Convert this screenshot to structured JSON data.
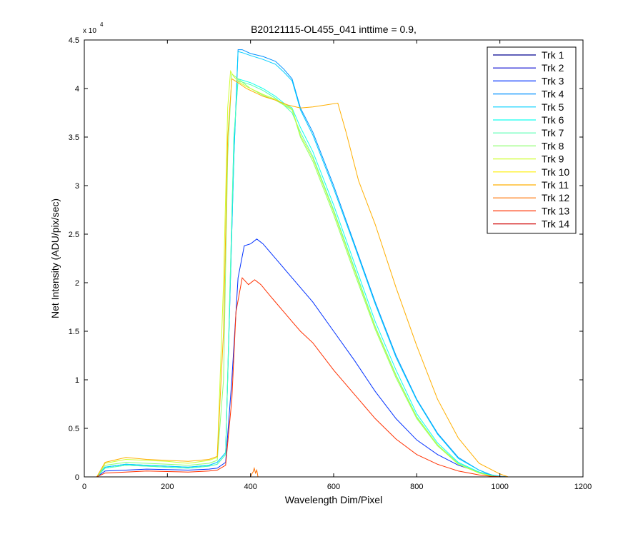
{
  "chart_data": {
    "type": "line",
    "title": "B20121115-OL455_041 inttime = 0.9,",
    "xlabel": "Wavelength Dim/Pixel",
    "ylabel": "Net Intensity (ADU/pix/sec)",
    "y_exponent_label": "x 10",
    "y_exponent_power": "4",
    "xlim": [
      0,
      1200
    ],
    "ylim": [
      0,
      45000
    ],
    "xticks": [
      0,
      200,
      400,
      600,
      800,
      1000,
      1200
    ],
    "xtick_labels": [
      "0",
      "200",
      "400",
      "600",
      "800",
      "1000",
      "1200"
    ],
    "yticks": [
      0,
      5000,
      10000,
      15000,
      20000,
      25000,
      30000,
      35000,
      40000,
      45000
    ],
    "ytick_labels": [
      "0",
      "0.5",
      "1",
      "1.5",
      "2",
      "2.5",
      "3",
      "3.5",
      "4",
      "4.5"
    ],
    "grid": false,
    "legend_position": "top-right",
    "series": [
      {
        "name": "Trk 1",
        "color": "#00008F",
        "x": [
          0,
          1200
        ],
        "y": [
          0,
          0
        ]
      },
      {
        "name": "Trk 2",
        "color": "#0000CF",
        "x": [
          0,
          1200
        ],
        "y": [
          0,
          0
        ]
      },
      {
        "name": "Trk 3",
        "color": "#0030FF",
        "x": [
          30,
          50,
          100,
          150,
          200,
          250,
          300,
          320,
          340,
          355,
          370,
          385,
          400,
          415,
          430,
          450,
          480,
          500,
          520,
          550,
          600,
          650,
          700,
          750,
          800,
          850,
          900,
          950,
          980,
          1000,
          1020
        ],
        "y": [
          0,
          600,
          700,
          800,
          750,
          700,
          800,
          900,
          1500,
          10000,
          20500,
          23800,
          24000,
          24500,
          24000,
          23000,
          21500,
          20500,
          19500,
          18000,
          15000,
          12000,
          8800,
          6000,
          3800,
          2300,
          1200,
          500,
          200,
          60,
          0
        ]
      },
      {
        "name": "Trk 4",
        "color": "#0090FF",
        "x": [
          30,
          50,
          100,
          150,
          200,
          250,
          300,
          320,
          340,
          360,
          370,
          380,
          400,
          430,
          460,
          480,
          500,
          520,
          550,
          600,
          650,
          700,
          750,
          800,
          850,
          900,
          950,
          980,
          1000,
          1020
        ],
        "y": [
          0,
          1000,
          1300,
          1200,
          1100,
          1000,
          1200,
          1500,
          2500,
          33000,
          44000,
          44000,
          43600,
          43300,
          42800,
          42000,
          41000,
          38000,
          35500,
          30000,
          24000,
          18000,
          12500,
          8000,
          4500,
          2000,
          700,
          200,
          50,
          0
        ]
      },
      {
        "name": "Trk 5",
        "color": "#00CFFF",
        "x": [
          30,
          50,
          100,
          150,
          200,
          250,
          300,
          320,
          340,
          360,
          370,
          380,
          400,
          430,
          460,
          480,
          500,
          520,
          550,
          600,
          650,
          700,
          750,
          800,
          850,
          900,
          950,
          980,
          1000,
          1020
        ],
        "y": [
          0,
          1000,
          1300,
          1200,
          1100,
          1000,
          1200,
          1500,
          2500,
          33000,
          43800,
          43700,
          43400,
          43000,
          42500,
          41700,
          40800,
          37800,
          35200,
          29700,
          23800,
          17800,
          12300,
          7900,
          4400,
          1900,
          700,
          200,
          50,
          0
        ]
      },
      {
        "name": "Trk 6",
        "color": "#10FFEF",
        "x": [
          30,
          50,
          100,
          150,
          200,
          250,
          300,
          320,
          340,
          360,
          370,
          385,
          400,
          430,
          460,
          480,
          500,
          520,
          550,
          600,
          650,
          700,
          750,
          800,
          850,
          900,
          950,
          980,
          1000
        ],
        "y": [
          0,
          900,
          1200,
          1100,
          1000,
          900,
          1100,
          1300,
          2300,
          35000,
          41000,
          40800,
          40600,
          40000,
          39200,
          38500,
          38000,
          36000,
          33500,
          28000,
          22000,
          16000,
          11000,
          6500,
          3500,
          1500,
          500,
          150,
          0
        ]
      },
      {
        "name": "Trk 7",
        "color": "#50FFAF",
        "x": [
          30,
          50,
          100,
          150,
          200,
          250,
          300,
          320,
          340,
          360,
          370,
          385,
          400,
          430,
          460,
          480,
          500,
          520,
          550,
          600,
          650,
          700,
          750,
          800,
          850,
          900,
          950,
          980,
          1000
        ],
        "y": [
          0,
          900,
          1200,
          1100,
          1000,
          900,
          1100,
          1300,
          2300,
          35000,
          40800,
          40600,
          40400,
          39800,
          39000,
          38300,
          37500,
          35500,
          33000,
          27500,
          21500,
          15500,
          10500,
          6200,
          3300,
          1400,
          450,
          120,
          0
        ]
      },
      {
        "name": "Trk 8",
        "color": "#8FFF70",
        "x": [
          30,
          50,
          100,
          150,
          200,
          250,
          300,
          320,
          335,
          345,
          355,
          370,
          385,
          400,
          430,
          460,
          480,
          500,
          520,
          550,
          600,
          650,
          700,
          750,
          800,
          850,
          900,
          950,
          980,
          1000
        ],
        "y": [
          0,
          1200,
          1500,
          1400,
          1300,
          1200,
          1400,
          1700,
          10000,
          33000,
          41500,
          41000,
          40500,
          40000,
          39300,
          38800,
          38300,
          37800,
          35000,
          32500,
          27000,
          21000,
          15200,
          10200,
          6000,
          3200,
          1300,
          400,
          100,
          0
        ]
      },
      {
        "name": "Trk 9",
        "color": "#CFFF30",
        "x": [
          30,
          50,
          100,
          150,
          200,
          250,
          300,
          320,
          335,
          345,
          352,
          360,
          375,
          390,
          410,
          430,
          460,
          480,
          500,
          520,
          550,
          600,
          650,
          700,
          750,
          800,
          850,
          900,
          950,
          980,
          1000
        ],
        "y": [
          0,
          1400,
          1800,
          1700,
          1600,
          1400,
          1700,
          2000,
          20000,
          38000,
          41800,
          41200,
          40600,
          40200,
          39800,
          39400,
          38900,
          38400,
          37900,
          35200,
          32800,
          27300,
          21300,
          15400,
          10400,
          6100,
          3300,
          1300,
          400,
          100,
          0
        ]
      },
      {
        "name": "Trk 10",
        "color": "#FFEF00",
        "x": [
          30,
          1200
        ],
        "y": [
          0,
          0
        ]
      },
      {
        "name": "Trk 11",
        "color": "#FFAF00",
        "x": [
          30,
          50,
          100,
          150,
          200,
          250,
          300,
          320,
          335,
          345,
          355,
          370,
          390,
          410,
          430,
          460,
          490,
          520,
          550,
          580,
          610,
          630,
          660,
          700,
          750,
          800,
          850,
          900,
          950,
          1000,
          1020
        ],
        "y": [
          0,
          1500,
          2000,
          1800,
          1700,
          1600,
          1800,
          2100,
          15000,
          35000,
          41000,
          40600,
          40000,
          39600,
          39200,
          38800,
          38300,
          38000,
          38100,
          38300,
          38500,
          35500,
          30500,
          26000,
          19500,
          13500,
          8000,
          4000,
          1400,
          300,
          0
        ]
      },
      {
        "name": "Trk 12",
        "color": "#FF7000",
        "x": [
          30,
          1200
        ],
        "y": [
          0,
          0
        ]
      },
      {
        "name": "Trk 13",
        "color": "#FF3000",
        "x": [
          30,
          50,
          100,
          150,
          200,
          250,
          300,
          320,
          340,
          355,
          365,
          380,
          395,
          410,
          425,
          450,
          480,
          500,
          520,
          550,
          600,
          650,
          700,
          750,
          800,
          850,
          900,
          950,
          980,
          1000,
          1020
        ],
        "y": [
          0,
          400,
          500,
          600,
          550,
          500,
          600,
          700,
          1200,
          8000,
          17000,
          20500,
          19800,
          20300,
          19800,
          18500,
          17000,
          16000,
          15000,
          13800,
          11000,
          8500,
          6000,
          3900,
          2300,
          1300,
          600,
          200,
          60,
          20,
          0
        ]
      },
      {
        "name": "Trk 14",
        "color": "#CF0000",
        "x": [
          30,
          1200
        ],
        "y": [
          0,
          0
        ]
      }
    ],
    "spike_series": {
      "color": "#FF7000",
      "x": [
        400,
        403,
        406,
        409,
        412,
        415,
        418
      ],
      "y": [
        0,
        300,
        500,
        900,
        400,
        700,
        0
      ]
    }
  }
}
